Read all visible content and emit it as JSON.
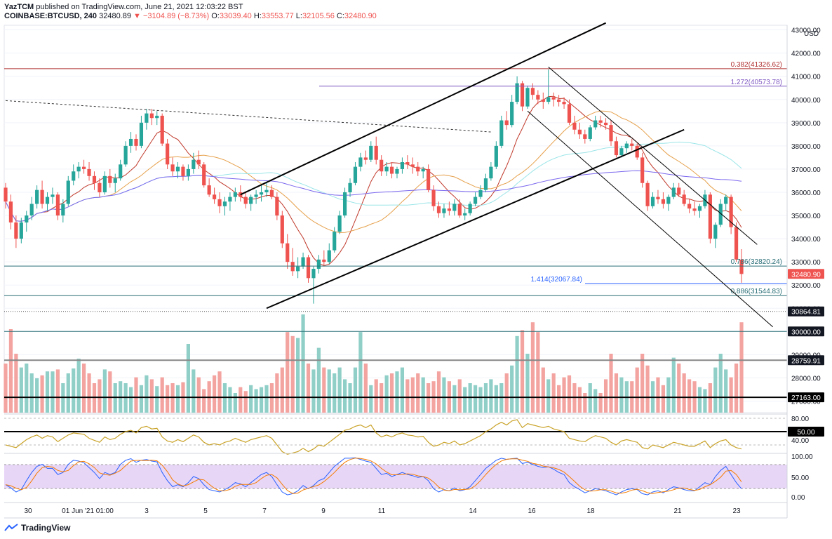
{
  "header": {
    "publisher": "YazTCM",
    "published_text": "published on TradingView.com, June 21, 2021 12:03:22 BST",
    "symbol": "COINBASE:BTCUSD, 240",
    "last": "32480.89",
    "change": "−3104.89 (−8.73%)",
    "open_label": "O:",
    "open": "33039.40",
    "high_label": "H:",
    "high": "33553.77",
    "low_label": "L:",
    "low": "32105.56",
    "close_label": "C:",
    "close": "32480.90"
  },
  "footer": {
    "brand": "TradingView"
  },
  "colors": {
    "up": "#26a69a",
    "down": "#ef5350",
    "fib": "#5b9aa0",
    "rsi": "#c9a227",
    "stoch_k": "#2962ff",
    "stoch_d": "#f57c00"
  },
  "chart_data": {
    "type": "candlestick",
    "currency": "USD",
    "y_ticks": [
      "43000.00",
      "42000.00",
      "41000.00",
      "40000.00",
      "39000.00",
      "38000.00",
      "37000.00",
      "36000.00",
      "35000.00",
      "34000.00",
      "33000.00",
      "32000.00",
      "31000.00",
      "30000.00",
      "29000.00",
      "28000.00",
      "27000.00"
    ],
    "x_ticks": [
      "30",
      "01 Jun '21  01:00",
      "3",
      "5",
      "7",
      "9",
      "11",
      "14",
      "16",
      "18",
      "21",
      "23"
    ],
    "ylim": [
      26500,
      43200
    ],
    "price_labels": [
      {
        "text": "32480.90",
        "kind": "last"
      },
      {
        "text": "30864.81",
        "kind": "dark"
      },
      {
        "text": "30000.00",
        "kind": "dark"
      },
      {
        "text": "28759.91",
        "kind": "dark"
      },
      {
        "text": "27163.00",
        "kind": "dark"
      },
      {
        "text": "50.00",
        "kind": "dark"
      }
    ],
    "fib_labels": [
      {
        "text": "0.382(41326.62)"
      },
      {
        "text": "1.272(40573.78)"
      },
      {
        "text": "0.786(32820.24)"
      },
      {
        "text": "1.414(32067.84)"
      },
      {
        "text": "0.886(31544.83)"
      }
    ],
    "rsi_ticks": [
      "80.00",
      "40.00"
    ],
    "stoch_ticks": [
      "100.00",
      "50.00",
      "0.00"
    ],
    "candles": [
      [
        36200,
        36400,
        35300,
        35600
      ],
      [
        35600,
        35900,
        34400,
        34700
      ],
      [
        34700,
        35000,
        33600,
        34000
      ],
      [
        34000,
        34900,
        33800,
        34700
      ],
      [
        34700,
        35200,
        34300,
        35000
      ],
      [
        35000,
        35800,
        34800,
        35500
      ],
      [
        35500,
        36300,
        35300,
        36100
      ],
      [
        36100,
        36500,
        35300,
        35500
      ],
      [
        35500,
        36000,
        35200,
        35800
      ],
      [
        35800,
        36200,
        35500,
        35900
      ],
      [
        35900,
        36000,
        34800,
        35000
      ],
      [
        35000,
        35700,
        34700,
        35500
      ],
      [
        35500,
        36700,
        35400,
        36500
      ],
      [
        36500,
        37200,
        36300,
        36900
      ],
      [
        36900,
        37300,
        36600,
        37100
      ],
      [
        37100,
        37400,
        36800,
        37000
      ],
      [
        37000,
        37300,
        36500,
        36700
      ],
      [
        36700,
        36900,
        36100,
        36400
      ],
      [
        36400,
        36600,
        35800,
        36000
      ],
      [
        36000,
        36900,
        35900,
        36700
      ],
      [
        36700,
        37000,
        36200,
        36400
      ],
      [
        36400,
        36800,
        36000,
        36600
      ],
      [
        36600,
        37400,
        36500,
        37200
      ],
      [
        37200,
        38200,
        37100,
        38000
      ],
      [
        38000,
        38600,
        37700,
        38300
      ],
      [
        38300,
        38500,
        37800,
        38000
      ],
      [
        38000,
        39300,
        37900,
        39000
      ],
      [
        39000,
        39600,
        38700,
        39400
      ],
      [
        39400,
        39600,
        38900,
        39200
      ],
      [
        39200,
        39500,
        38900,
        39300
      ],
      [
        39300,
        39400,
        38000,
        38100
      ],
      [
        38100,
        38300,
        37000,
        37200
      ],
      [
        37200,
        37500,
        36700,
        36900
      ],
      [
        36900,
        37300,
        36600,
        37100
      ],
      [
        37100,
        37200,
        36500,
        36700
      ],
      [
        36700,
        37200,
        36500,
        37000
      ],
      [
        37000,
        37700,
        36800,
        37400
      ],
      [
        37400,
        37800,
        37000,
        37200
      ],
      [
        37200,
        37300,
        36200,
        36300
      ],
      [
        36300,
        36600,
        35800,
        35900
      ],
      [
        35900,
        36200,
        35500,
        35700
      ],
      [
        35700,
        36000,
        35100,
        35400
      ],
      [
        35400,
        35800,
        35000,
        35600
      ],
      [
        35600,
        36000,
        35200,
        35800
      ],
      [
        35800,
        36200,
        35600,
        36000
      ],
      [
        36000,
        36300,
        35600,
        35800
      ],
      [
        35800,
        36000,
        35300,
        35500
      ],
      [
        35500,
        35900,
        35200,
        35800
      ],
      [
        35800,
        36100,
        35500,
        35900
      ],
      [
        35900,
        36300,
        35600,
        36000
      ],
      [
        36000,
        36400,
        35800,
        36100
      ],
      [
        36100,
        36300,
        35700,
        35800
      ],
      [
        35800,
        36000,
        34800,
        35000
      ],
      [
        35000,
        35200,
        33600,
        33800
      ],
      [
        33800,
        34200,
        32700,
        33000
      ],
      [
        33000,
        33600,
        32400,
        32600
      ],
      [
        32600,
        33200,
        32300,
        32800
      ],
      [
        32800,
        33400,
        32700,
        33200
      ],
      [
        33200,
        33300,
        32100,
        32300
      ],
      [
        32300,
        32800,
        31200,
        32700
      ],
      [
        32700,
        33300,
        32500,
        33100
      ],
      [
        33100,
        33500,
        32800,
        33000
      ],
      [
        33000,
        33800,
        32900,
        33500
      ],
      [
        33500,
        34500,
        33400,
        34300
      ],
      [
        34300,
        35200,
        34200,
        35000
      ],
      [
        35000,
        36200,
        34900,
        36000
      ],
      [
        36000,
        36600,
        35800,
        36400
      ],
      [
        36400,
        37300,
        36300,
        37100
      ],
      [
        37100,
        37700,
        36900,
        37500
      ],
      [
        37500,
        37800,
        37200,
        37400
      ],
      [
        37400,
        38200,
        37300,
        38000
      ],
      [
        38000,
        38400,
        37200,
        37400
      ],
      [
        37400,
        37600,
        36700,
        36900
      ],
      [
        36900,
        37300,
        36700,
        37100
      ],
      [
        37100,
        37300,
        36600,
        36800
      ],
      [
        36800,
        37100,
        36600,
        37000
      ],
      [
        37000,
        37500,
        36800,
        37300
      ],
      [
        37300,
        37600,
        37000,
        37200
      ],
      [
        37200,
        37500,
        36800,
        37100
      ],
      [
        37100,
        37300,
        36700,
        36900
      ],
      [
        36900,
        37100,
        36600,
        37000
      ],
      [
        37000,
        37200,
        36000,
        36100
      ],
      [
        36100,
        36300,
        35200,
        35400
      ],
      [
        35400,
        35600,
        34900,
        35100
      ],
      [
        35100,
        35500,
        34900,
        35300
      ],
      [
        35300,
        35600,
        35000,
        35200
      ],
      [
        35200,
        35700,
        35000,
        35500
      ],
      [
        35500,
        35700,
        34900,
        35000
      ],
      [
        35000,
        35300,
        34800,
        35100
      ],
      [
        35100,
        35600,
        35000,
        35500
      ],
      [
        35500,
        36000,
        35400,
        35800
      ],
      [
        35800,
        36300,
        35700,
        36100
      ],
      [
        36100,
        36800,
        36000,
        36600
      ],
      [
        36600,
        37300,
        36500,
        37100
      ],
      [
        37100,
        38200,
        37000,
        38000
      ],
      [
        38000,
        39300,
        37900,
        39100
      ],
      [
        39100,
        39500,
        38700,
        38900
      ],
      [
        38900,
        40200,
        38800,
        39900
      ],
      [
        39900,
        41000,
        39800,
        40700
      ],
      [
        40700,
        40800,
        39500,
        39700
      ],
      [
        39700,
        40600,
        39600,
        40500
      ],
      [
        40500,
        40700,
        40000,
        40200
      ],
      [
        40200,
        40400,
        39800,
        40000
      ],
      [
        40000,
        40300,
        39600,
        39900
      ],
      [
        39900,
        41300,
        39800,
        40100
      ],
      [
        40100,
        40300,
        39700,
        40000
      ],
      [
        40000,
        40200,
        39700,
        39900
      ],
      [
        39900,
        40100,
        39600,
        39800
      ],
      [
        39800,
        40000,
        38900,
        39000
      ],
      [
        39000,
        39300,
        38500,
        38700
      ],
      [
        38700,
        39000,
        38300,
        38500
      ],
      [
        38500,
        38700,
        38100,
        38300
      ],
      [
        38300,
        38900,
        38200,
        38800
      ],
      [
        38800,
        39300,
        38700,
        39100
      ],
      [
        39100,
        39300,
        38800,
        39000
      ],
      [
        39000,
        39200,
        38700,
        38900
      ],
      [
        38900,
        39100,
        38000,
        38200
      ],
      [
        38200,
        38400,
        37500,
        37600
      ],
      [
        37600,
        38000,
        37500,
        37900
      ],
      [
        37900,
        38200,
        37700,
        38100
      ],
      [
        38100,
        38300,
        37800,
        38000
      ],
      [
        38000,
        38100,
        37400,
        37500
      ],
      [
        37500,
        37700,
        36200,
        36400
      ],
      [
        36400,
        36500,
        35200,
        35400
      ],
      [
        35400,
        36000,
        35300,
        35800
      ],
      [
        35800,
        36100,
        35500,
        35700
      ],
      [
        35700,
        36000,
        35300,
        35500
      ],
      [
        35500,
        35900,
        35200,
        35800
      ],
      [
        35800,
        36400,
        35700,
        36200
      ],
      [
        36200,
        36400,
        35800,
        35900
      ],
      [
        35900,
        36100,
        35400,
        35500
      ],
      [
        35500,
        35700,
        35100,
        35300
      ],
      [
        35300,
        35600,
        35000,
        35200
      ],
      [
        35200,
        35500,
        34900,
        35400
      ],
      [
        35400,
        36100,
        35300,
        35900
      ],
      [
        35900,
        36000,
        33800,
        34000
      ],
      [
        34000,
        34700,
        33600,
        34600
      ],
      [
        34600,
        35700,
        34500,
        35500
      ],
      [
        35500,
        35900,
        35200,
        35800
      ],
      [
        35800,
        35900,
        34200,
        34500
      ],
      [
        34500,
        34700,
        33000,
        33100
      ],
      [
        33100,
        33550,
        32100,
        32480
      ]
    ],
    "volumes": [
      0.5,
      0.85,
      0.6,
      0.46,
      0.5,
      0.4,
      0.35,
      0.38,
      0.42,
      0.42,
      0.44,
      0.3,
      0.4,
      0.45,
      0.55,
      0.5,
      0.4,
      0.3,
      0.34,
      0.44,
      0.42,
      0.3,
      0.32,
      0.3,
      0.26,
      0.36,
      0.28,
      0.38,
      0.34,
      0.27,
      0.36,
      0.28,
      0.3,
      0.28,
      0.31,
      0.7,
      0.44,
      0.36,
      0.24,
      0.32,
      0.38,
      0.42,
      0.3,
      0.26,
      0.2,
      0.26,
      0.22,
      0.28,
      0.24,
      0.26,
      0.28,
      0.3,
      0.4,
      0.46,
      0.82,
      0.78,
      0.76,
      1.0,
      0.5,
      0.44,
      0.66,
      0.46,
      0.44,
      0.4,
      0.46,
      0.34,
      0.3,
      0.46,
      0.82,
      0.5,
      0.28,
      0.34,
      0.3,
      0.38,
      0.4,
      0.42,
      0.46,
      0.34,
      0.36,
      0.4,
      0.36,
      0.3,
      0.32,
      0.42,
      0.36,
      0.32,
      0.28,
      0.34,
      0.26,
      0.3,
      0.28,
      0.26,
      0.3,
      0.34,
      0.28,
      0.3,
      0.4,
      0.48,
      0.78,
      0.84,
      0.6,
      0.92,
      0.82,
      0.46,
      0.34,
      0.4,
      0.28,
      0.36,
      0.38,
      0.3,
      0.26,
      0.2,
      0.3,
      0.24,
      0.2,
      0.34,
      0.6,
      0.4,
      0.36,
      0.32,
      0.32,
      0.46,
      0.6,
      0.48,
      0.32,
      0.36,
      0.28,
      0.36,
      0.56,
      0.5,
      0.4,
      0.34,
      0.32,
      0.26,
      0.24,
      0.3,
      0.46,
      0.6,
      0.44,
      0.36,
      0.5,
      0.92,
      0.7
    ],
    "rsi": [
      40,
      38,
      36,
      42,
      48,
      52,
      55,
      50,
      54,
      52,
      45,
      50,
      55,
      58,
      57,
      56,
      50,
      47,
      44,
      52,
      48,
      50,
      56,
      60,
      62,
      58,
      66,
      68,
      64,
      65,
      52,
      46,
      44,
      48,
      45,
      50,
      55,
      52,
      44,
      40,
      42,
      40,
      44,
      46,
      50,
      47,
      44,
      48,
      50,
      52,
      54,
      50,
      40,
      30,
      26,
      28,
      30,
      35,
      30,
      34,
      40,
      38,
      44,
      50,
      56,
      62,
      64,
      68,
      70,
      66,
      70,
      58,
      52,
      55,
      52,
      56,
      58,
      55,
      54,
      52,
      53,
      44,
      38,
      40,
      44,
      42,
      46,
      40,
      42,
      46,
      50,
      54,
      60,
      64,
      70,
      74,
      70,
      76,
      78,
      66,
      72,
      70,
      68,
      66,
      68,
      64,
      62,
      60,
      50,
      48,
      46,
      45,
      50,
      54,
      52,
      50,
      44,
      40,
      46,
      48,
      46,
      44,
      36,
      34,
      40,
      38,
      36,
      40,
      44,
      42,
      40,
      38,
      38,
      42,
      46,
      36,
      42,
      46,
      48,
      40,
      36,
      34
    ],
    "stoch_k": [
      30,
      22,
      12,
      18,
      40,
      60,
      75,
      80,
      70,
      70,
      55,
      60,
      80,
      90,
      88,
      84,
      72,
      60,
      45,
      60,
      55,
      60,
      80,
      90,
      94,
      85,
      90,
      92,
      88,
      86,
      60,
      40,
      25,
      30,
      25,
      35,
      50,
      45,
      30,
      18,
      15,
      12,
      18,
      25,
      35,
      32,
      25,
      35,
      45,
      55,
      60,
      50,
      30,
      12,
      5,
      8,
      15,
      28,
      20,
      28,
      40,
      45,
      60,
      75,
      85,
      95,
      95,
      96,
      92,
      88,
      85,
      70,
      55,
      58,
      50,
      55,
      60,
      55,
      52,
      48,
      50,
      40,
      20,
      12,
      18,
      15,
      22,
      15,
      18,
      25,
      40,
      55,
      70,
      80,
      90,
      95,
      92,
      94,
      95,
      82,
      85,
      80,
      75,
      72,
      74,
      68,
      60,
      55,
      35,
      25,
      18,
      10,
      15,
      20,
      18,
      15,
      10,
      5,
      12,
      18,
      20,
      18,
      8,
      5,
      12,
      15,
      10,
      18,
      25,
      22,
      18,
      15,
      15,
      25,
      35,
      30,
      50,
      65,
      75,
      55,
      35,
      20
    ]
  }
}
